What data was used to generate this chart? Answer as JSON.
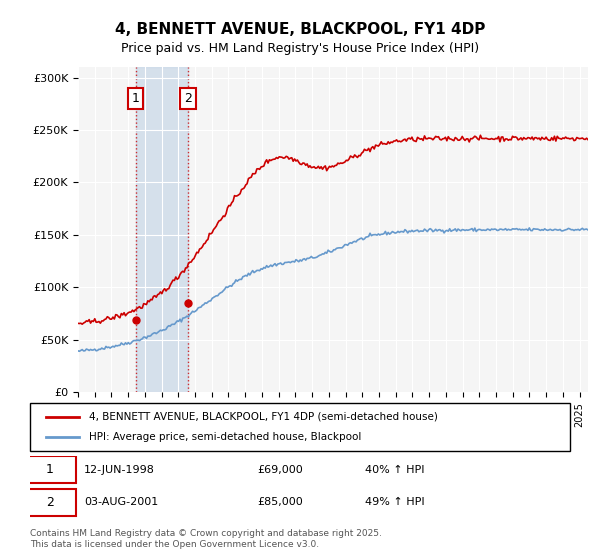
{
  "title": "4, BENNETT AVENUE, BLACKPOOL, FY1 4DP",
  "subtitle": "Price paid vs. HM Land Registry's House Price Index (HPI)",
  "ylim": [
    0,
    310000
  ],
  "yticks": [
    0,
    50000,
    100000,
    150000,
    200000,
    250000,
    300000
  ],
  "ytick_labels": [
    "£0",
    "£50K",
    "£100K",
    "£150K",
    "£200K",
    "£250K",
    "£300K"
  ],
  "legend_line1": "4, BENNETT AVENUE, BLACKPOOL, FY1 4DP (semi-detached house)",
  "legend_line2": "HPI: Average price, semi-detached house, Blackpool",
  "red_color": "#cc0000",
  "blue_color": "#6699cc",
  "purchase1_date": "12-JUN-1998",
  "purchase1_price": 69000,
  "purchase1_label": "40% ↑ HPI",
  "purchase2_date": "03-AUG-2001",
  "purchase2_price": 85000,
  "purchase2_label": "49% ↑ HPI",
  "footnote": "Contains HM Land Registry data © Crown copyright and database right 2025.\nThis data is licensed under the Open Government Licence v3.0.",
  "background_color": "#f5f5f5",
  "shaded_region_color": "#c8d8e8"
}
